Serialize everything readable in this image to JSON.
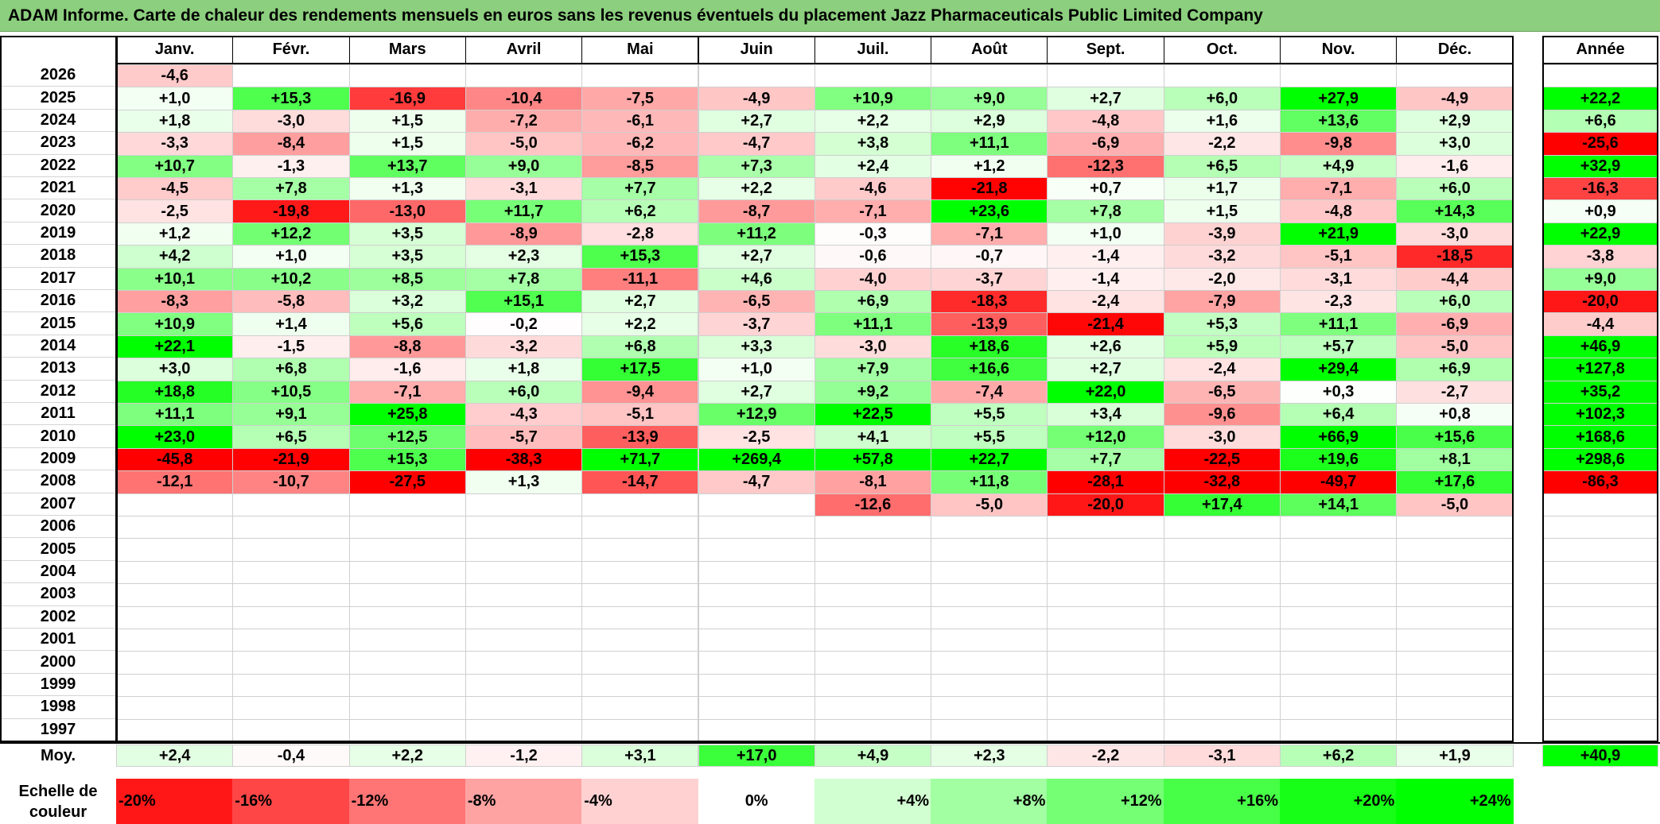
{
  "title": "ADAM Informe. Carte de chaleur des rendements mensuels en euros sans les revenus éventuels du placement Jazz Pharmaceuticals Public Limited Company",
  "colors": {
    "title_bg": "#8ccf7e",
    "negative_max": "#ff0000",
    "neutral": "#ffffff",
    "positive_max": "#00ff00"
  },
  "chart_data": {
    "type": "heatmap",
    "columns": [
      "Janv.",
      "Févr.",
      "Mars",
      "Avril",
      "Mai",
      "Juin",
      "Juil.",
      "Août",
      "Sept.",
      "Oct.",
      "Nov.",
      "Déc."
    ],
    "year_column_label": "Année",
    "years": [
      "2026",
      "2025",
      "2024",
      "2023",
      "2022",
      "2021",
      "2020",
      "2019",
      "2018",
      "2017",
      "2016",
      "2015",
      "2014",
      "2013",
      "2012",
      "2011",
      "2010",
      "2009",
      "2008",
      "2007",
      "2006",
      "2005",
      "2004",
      "2003",
      "2002",
      "2001",
      "2000",
      "1999",
      "1998",
      "1997"
    ],
    "values": [
      [
        "-4,6",
        "",
        "",
        "",
        "",
        "",
        "",
        "",
        "",
        "",
        "",
        ""
      ],
      [
        "+1,0",
        "+15,3",
        "-16,9",
        "-10,4",
        "-7,5",
        "-4,9",
        "+10,9",
        "+9,0",
        "+2,7",
        "+6,0",
        "+27,9",
        "-4,9"
      ],
      [
        "+1,8",
        "-3,0",
        "+1,5",
        "-7,2",
        "-6,1",
        "+2,7",
        "+2,2",
        "+2,9",
        "-4,8",
        "+1,6",
        "+13,6",
        "+2,9"
      ],
      [
        "-3,3",
        "-8,4",
        "+1,5",
        "-5,0",
        "-6,2",
        "-4,7",
        "+3,8",
        "+11,1",
        "-6,9",
        "-2,2",
        "-9,8",
        "+3,0"
      ],
      [
        "+10,7",
        "-1,3",
        "+13,7",
        "+9,0",
        "-8,5",
        "+7,3",
        "+2,4",
        "+1,2",
        "-12,3",
        "+6,5",
        "+4,9",
        "-1,6"
      ],
      [
        "-4,5",
        "+7,8",
        "+1,3",
        "-3,1",
        "+7,7",
        "+2,2",
        "-4,6",
        "-21,8",
        "+0,7",
        "+1,7",
        "-7,1",
        "+6,0"
      ],
      [
        "-2,5",
        "-19,8",
        "-13,0",
        "+11,7",
        "+6,2",
        "-8,7",
        "-7,1",
        "+23,6",
        "+7,8",
        "+1,5",
        "-4,8",
        "+14,3"
      ],
      [
        "+1,2",
        "+12,2",
        "+3,5",
        "-8,9",
        "-2,8",
        "+11,2",
        "-0,3",
        "-7,1",
        "+1,0",
        "-3,9",
        "+21,9",
        "-3,0"
      ],
      [
        "+4,2",
        "+1,0",
        "+3,5",
        "+2,3",
        "+15,3",
        "+2,7",
        "-0,6",
        "-0,7",
        "-1,4",
        "-3,2",
        "-5,1",
        "-18,5"
      ],
      [
        "+10,1",
        "+10,2",
        "+8,5",
        "+7,8",
        "-11,1",
        "+4,6",
        "-4,0",
        "-3,7",
        "-1,4",
        "-2,0",
        "-3,1",
        "-4,4"
      ],
      [
        "-8,3",
        "-5,8",
        "+3,2",
        "+15,1",
        "+2,7",
        "-6,5",
        "+6,9",
        "-18,3",
        "-2,4",
        "-7,9",
        "-2,3",
        "+6,0"
      ],
      [
        "+10,9",
        "+1,4",
        "+5,6",
        "-0,2",
        "+2,2",
        "-3,7",
        "+11,1",
        "-13,9",
        "-21,4",
        "+5,3",
        "+11,1",
        "-6,9"
      ],
      [
        "+22,1",
        "-1,5",
        "-8,8",
        "-3,2",
        "+6,8",
        "+3,3",
        "-3,0",
        "+18,6",
        "+2,6",
        "+5,9",
        "+5,7",
        "-5,0"
      ],
      [
        "+3,0",
        "+6,8",
        "-1,6",
        "+1,8",
        "+17,5",
        "+1,0",
        "+7,9",
        "+16,6",
        "+2,7",
        "-2,4",
        "+29,4",
        "+6,9"
      ],
      [
        "+18,8",
        "+10,5",
        "-7,1",
        "+6,0",
        "-9,4",
        "+2,7",
        "+9,2",
        "-7,4",
        "+22,0",
        "-6,5",
        "+0,3",
        "-2,7"
      ],
      [
        "+11,1",
        "+9,1",
        "+25,8",
        "-4,3",
        "-5,1",
        "+12,9",
        "+22,5",
        "+5,5",
        "+3,4",
        "-9,6",
        "+6,4",
        "+0,8"
      ],
      [
        "+23,0",
        "+6,5",
        "+12,5",
        "-5,7",
        "-13,9",
        "-2,5",
        "+4,1",
        "+5,5",
        "+12,0",
        "-3,0",
        "+66,9",
        "+15,6"
      ],
      [
        "-45,8",
        "-21,9",
        "+15,3",
        "-38,3",
        "+71,7",
        "+269,4",
        "+57,8",
        "+22,7",
        "+7,7",
        "-22,5",
        "+19,6",
        "+8,1"
      ],
      [
        "-12,1",
        "-10,7",
        "-27,5",
        "+1,3",
        "-14,7",
        "-4,7",
        "-8,1",
        "+11,8",
        "-28,1",
        "-32,8",
        "-49,7",
        "+17,6"
      ],
      [
        "",
        "",
        "",
        "",
        "",
        "",
        "-12,6",
        "-5,0",
        "-20,0",
        "+17,4",
        "+14,1",
        "-5,0"
      ],
      [
        "",
        "",
        "",
        "",
        "",
        "",
        "",
        "",
        "",
        "",
        "",
        ""
      ],
      [
        "",
        "",
        "",
        "",
        "",
        "",
        "",
        "",
        "",
        "",
        "",
        ""
      ],
      [
        "",
        "",
        "",
        "",
        "",
        "",
        "",
        "",
        "",
        "",
        "",
        ""
      ],
      [
        "",
        "",
        "",
        "",
        "",
        "",
        "",
        "",
        "",
        "",
        "",
        ""
      ],
      [
        "",
        "",
        "",
        "",
        "",
        "",
        "",
        "",
        "",
        "",
        "",
        ""
      ],
      [
        "",
        "",
        "",
        "",
        "",
        "",
        "",
        "",
        "",
        "",
        "",
        ""
      ],
      [
        "",
        "",
        "",
        "",
        "",
        "",
        "",
        "",
        "",
        "",
        "",
        ""
      ],
      [
        "",
        "",
        "",
        "",
        "",
        "",
        "",
        "",
        "",
        "",
        "",
        ""
      ],
      [
        "",
        "",
        "",
        "",
        "",
        "",
        "",
        "",
        "",
        "",
        "",
        ""
      ],
      [
        "",
        "",
        "",
        "",
        "",
        "",
        "",
        "",
        "",
        "",
        "",
        ""
      ]
    ],
    "annual": [
      "",
      "+22,2",
      "+6,6",
      "-25,6",
      "+32,9",
      "-16,3",
      "+0,9",
      "+22,9",
      "-3,8",
      "+9,0",
      "-20,0",
      "-4,4",
      "+46,9",
      "+127,8",
      "+35,2",
      "+102,3",
      "+168,6",
      "+298,6",
      "-86,3",
      "",
      "",
      "",
      "",
      "",
      "",
      "",
      "",
      "",
      "",
      ""
    ],
    "average_label": "Moy.",
    "averages": [
      "+2,4",
      "-0,4",
      "+2,2",
      "-1,2",
      "+3,1",
      "+17,0",
      "+4,9",
      "+2,3",
      "-2,2",
      "-3,1",
      "+6,2",
      "+1,9"
    ],
    "average_annual": "+40,9",
    "scale_label": "Echelle de couleur",
    "scale": [
      "-20%",
      "-16%",
      "-12%",
      "-8%",
      "-4%",
      "0%",
      "+4%",
      "+8%",
      "+12%",
      "+16%",
      "+20%",
      "+24%"
    ],
    "scale_values": [
      -20,
      -16,
      -12,
      -8,
      -4,
      0,
      4,
      8,
      12,
      16,
      20,
      24
    ]
  }
}
